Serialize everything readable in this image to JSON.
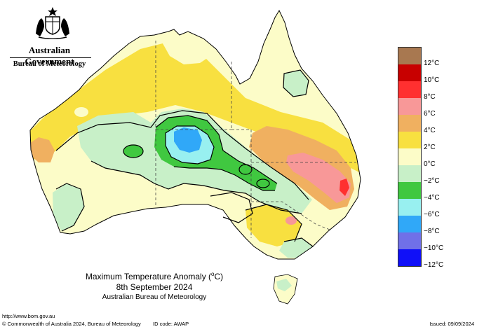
{
  "logo": {
    "government": "Australian Government",
    "bureau": "Bureau of Meteorology"
  },
  "title": {
    "line1_prefix": "Maximum Temperature Anomaly (",
    "line1_unit": "o",
    "line1_suffix": "C)",
    "line2": "8th September 2024",
    "line3": "Australian Bureau of Meteorology"
  },
  "legend": {
    "colors": [
      "#a87850",
      "#c80000",
      "#ff3030",
      "#f89898",
      "#f0b060",
      "#f8e040",
      "#fcfcc8",
      "#c8f0c8",
      "#40c840",
      "#98f0f0",
      "#30a8f8",
      "#7070e8",
      "#1010f8"
    ],
    "labels": [
      "12°C",
      "10°C",
      "8°C",
      "6°C",
      "4°C",
      "2°C",
      "0°C",
      "−2°C",
      "−4°C",
      "−6°C",
      "−8°C",
      "−10°C",
      "−12°C"
    ]
  },
  "footer": {
    "url": "http://www.bom.gov.au",
    "copyright": "© Commonwealth of Australia 2024, Bureau of Meteorology",
    "id_code": "ID code: AWAP",
    "issued": "Issued: 09/09/2024"
  }
}
